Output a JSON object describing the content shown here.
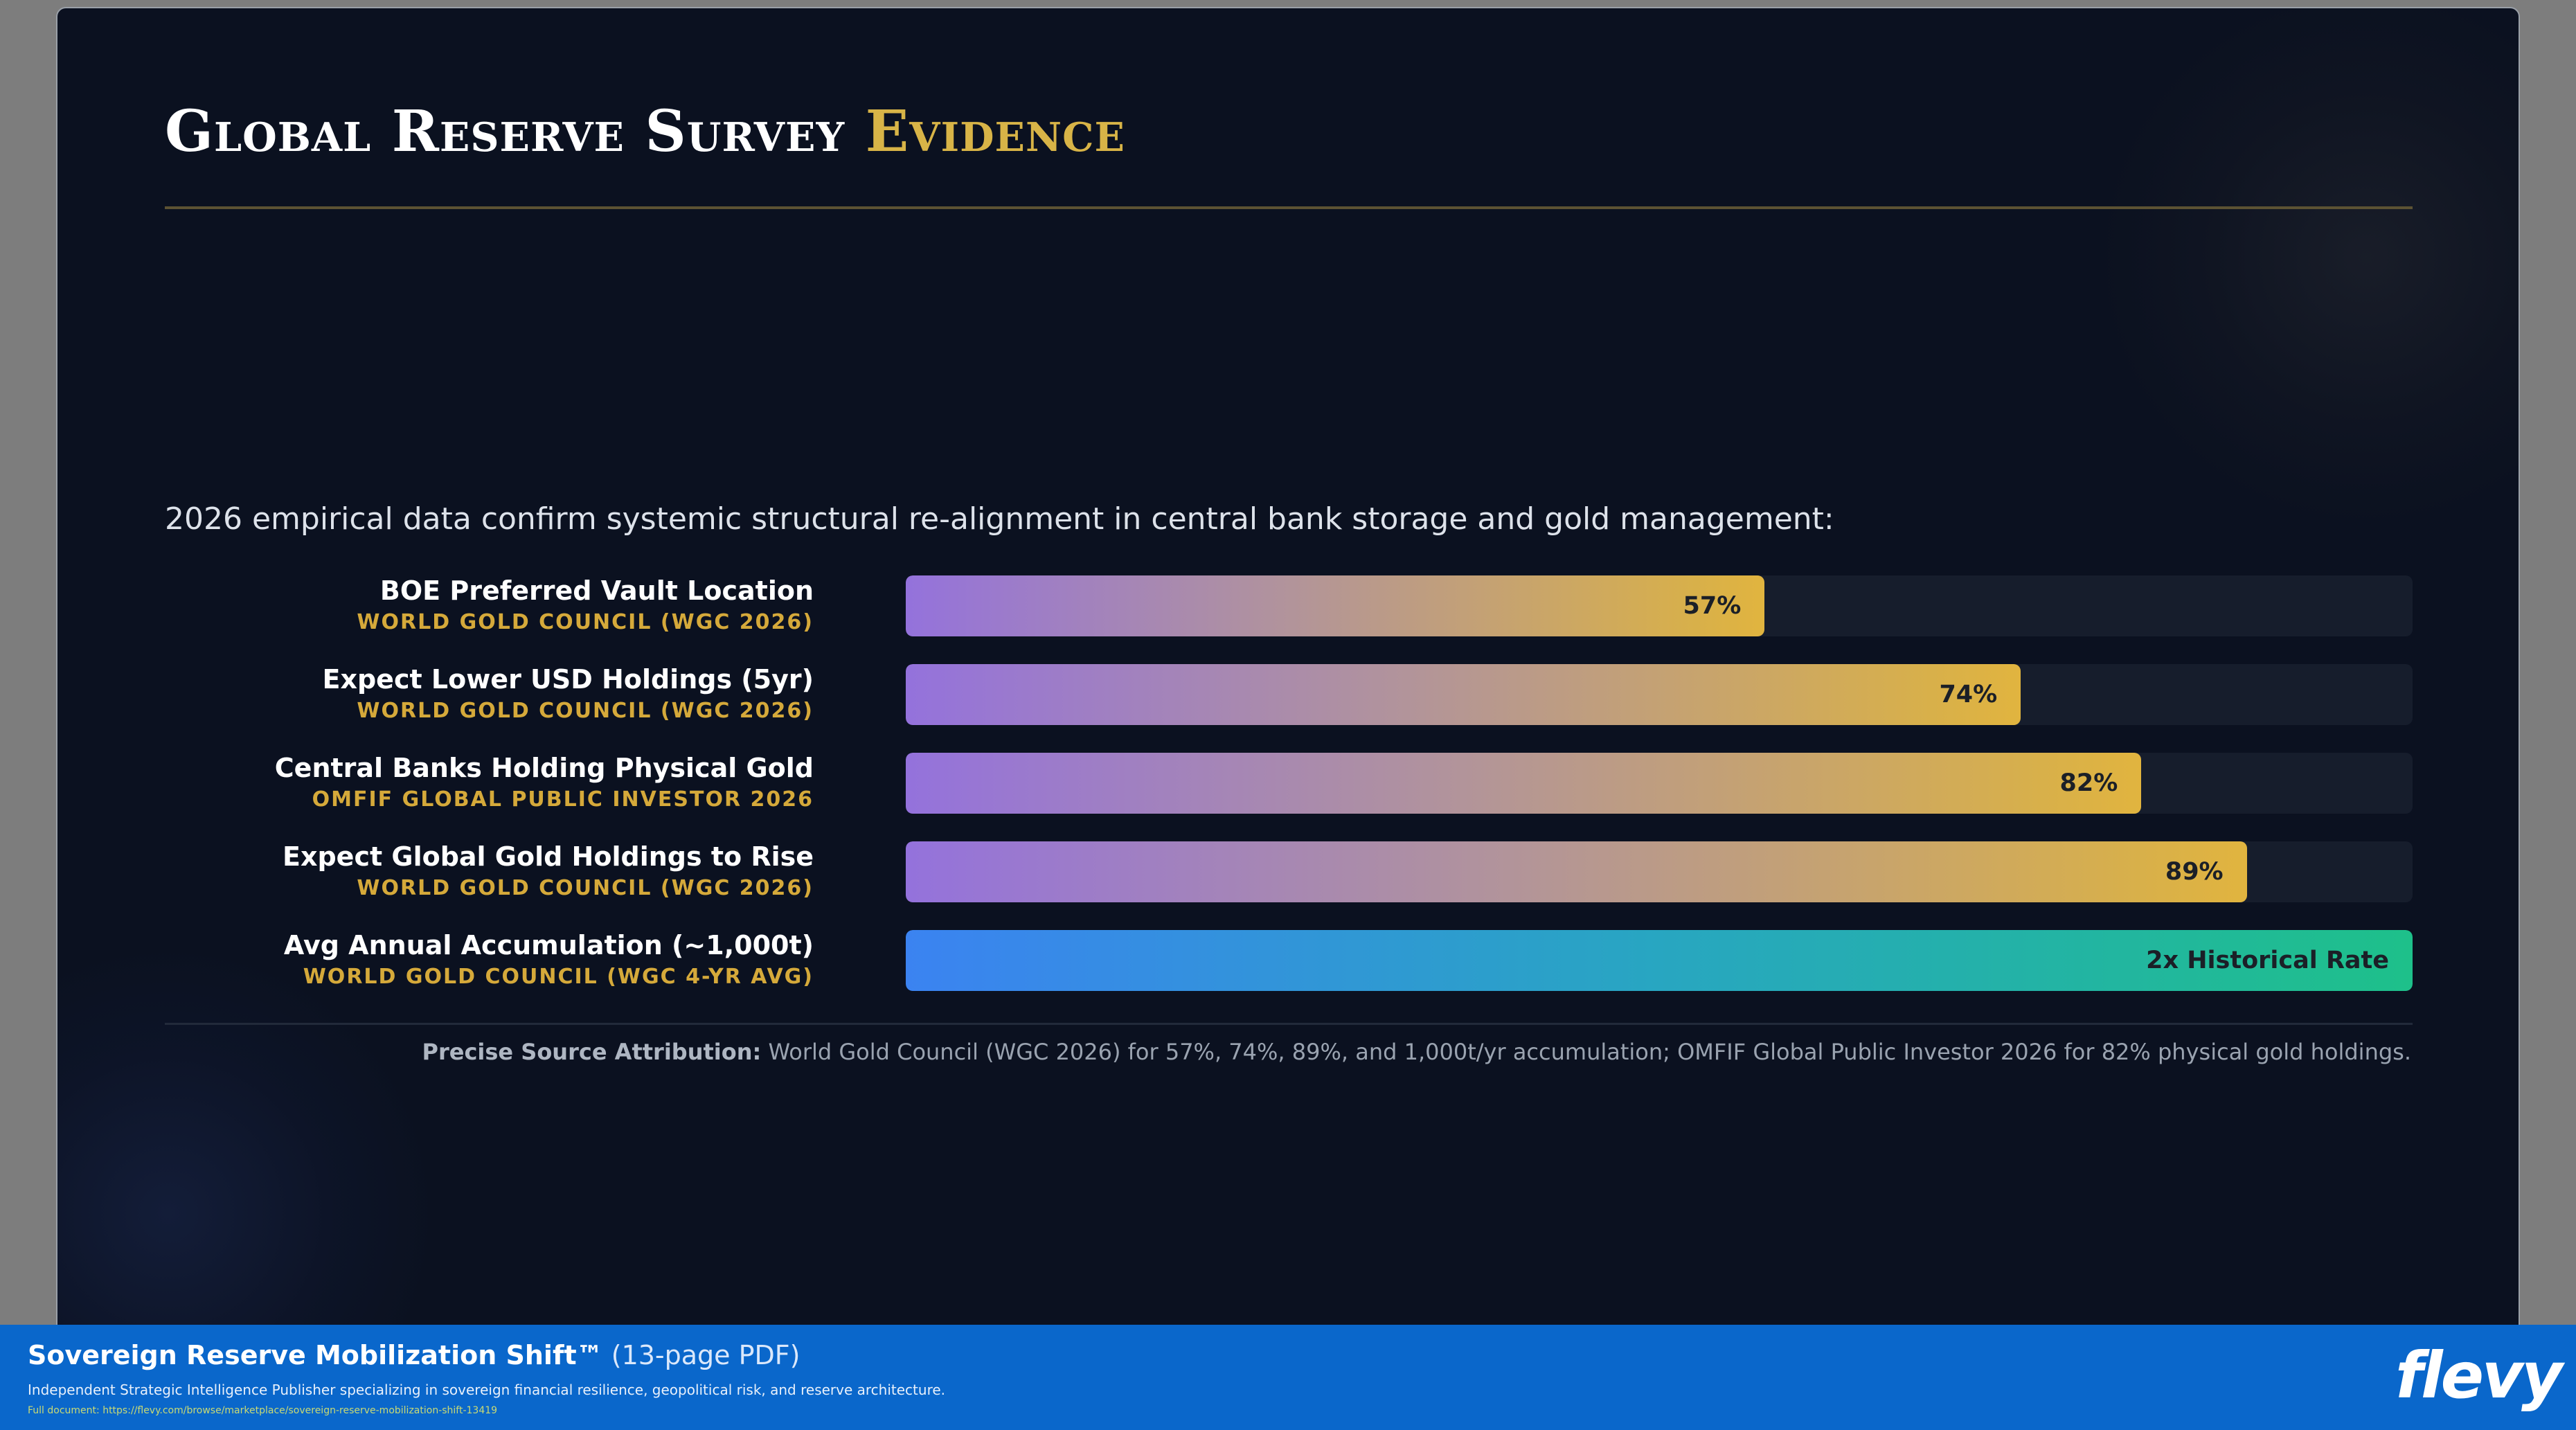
{
  "slide": {
    "title_main": "Global Reserve Survey",
    "title_accent": "Evidence",
    "intro": "2026 empirical data confirm systemic structural re-alignment in central bank storage and gold management:",
    "source_label": "Precise Source Attribution:",
    "source_text": "World Gold Council (WGC 2026) for 57%, 74%, 89%, and 1,000t/yr accumulation; OMFIF Global Public Investor 2026 for 82% physical gold holdings."
  },
  "chart_data": {
    "type": "bar",
    "orientation": "horizontal",
    "xlim": [
      0,
      100
    ],
    "grid": false,
    "categories": [
      "BOE Preferred Vault Location",
      "Expect Lower USD Holdings (5yr)",
      "Central Banks Holding Physical Gold",
      "Expect Global Gold Holdings to Rise",
      "Avg Annual Accumulation (~1,000t)"
    ],
    "bars": [
      {
        "label": "BOE Preferred Vault Location",
        "source": "WORLD GOLD COUNCIL (WGC 2026)",
        "value": 57,
        "value_label": "57%",
        "highlight": false
      },
      {
        "label": "Expect Lower USD Holdings (5yr)",
        "source": "WORLD GOLD COUNCIL (WGC 2026)",
        "value": 74,
        "value_label": "74%",
        "highlight": false
      },
      {
        "label": "Central Banks Holding Physical Gold",
        "source": "OMFIF GLOBAL PUBLIC INVESTOR 2026",
        "value": 82,
        "value_label": "82%",
        "highlight": false
      },
      {
        "label": "Expect Global Gold Holdings to Rise",
        "source": "WORLD GOLD COUNCIL (WGC 2026)",
        "value": 89,
        "value_label": "89%",
        "highlight": false
      },
      {
        "label": "Avg Annual Accumulation (~1,000t)",
        "source": "WORLD GOLD COUNCIL (WGC 4-YR AVG)",
        "value": 100,
        "value_label": "2x Historical Rate",
        "highlight": true
      }
    ],
    "colors": {
      "gradient_start": "#9472dc",
      "gradient_end": "#e1b43f",
      "highlight_start": "#3b83f1",
      "highlight_end": "#1ec08a",
      "track": "#161d2c"
    }
  },
  "footer": {
    "title": "Sovereign Reserve Mobilization Shift™",
    "pages": "(13-page PDF)",
    "description": "Independent Strategic Intelligence Publisher specializing in sovereign financial resilience, geopolitical risk, and reserve architecture.",
    "link": "Full document: https://flevy.com/browse/marketplace/sovereign-reserve-mobilization-shift-13419",
    "logo": "flevy"
  },
  "colors": {
    "background": "#0b1120",
    "accent_gold": "#d8b447",
    "footer_blue": "#0a67cb"
  }
}
